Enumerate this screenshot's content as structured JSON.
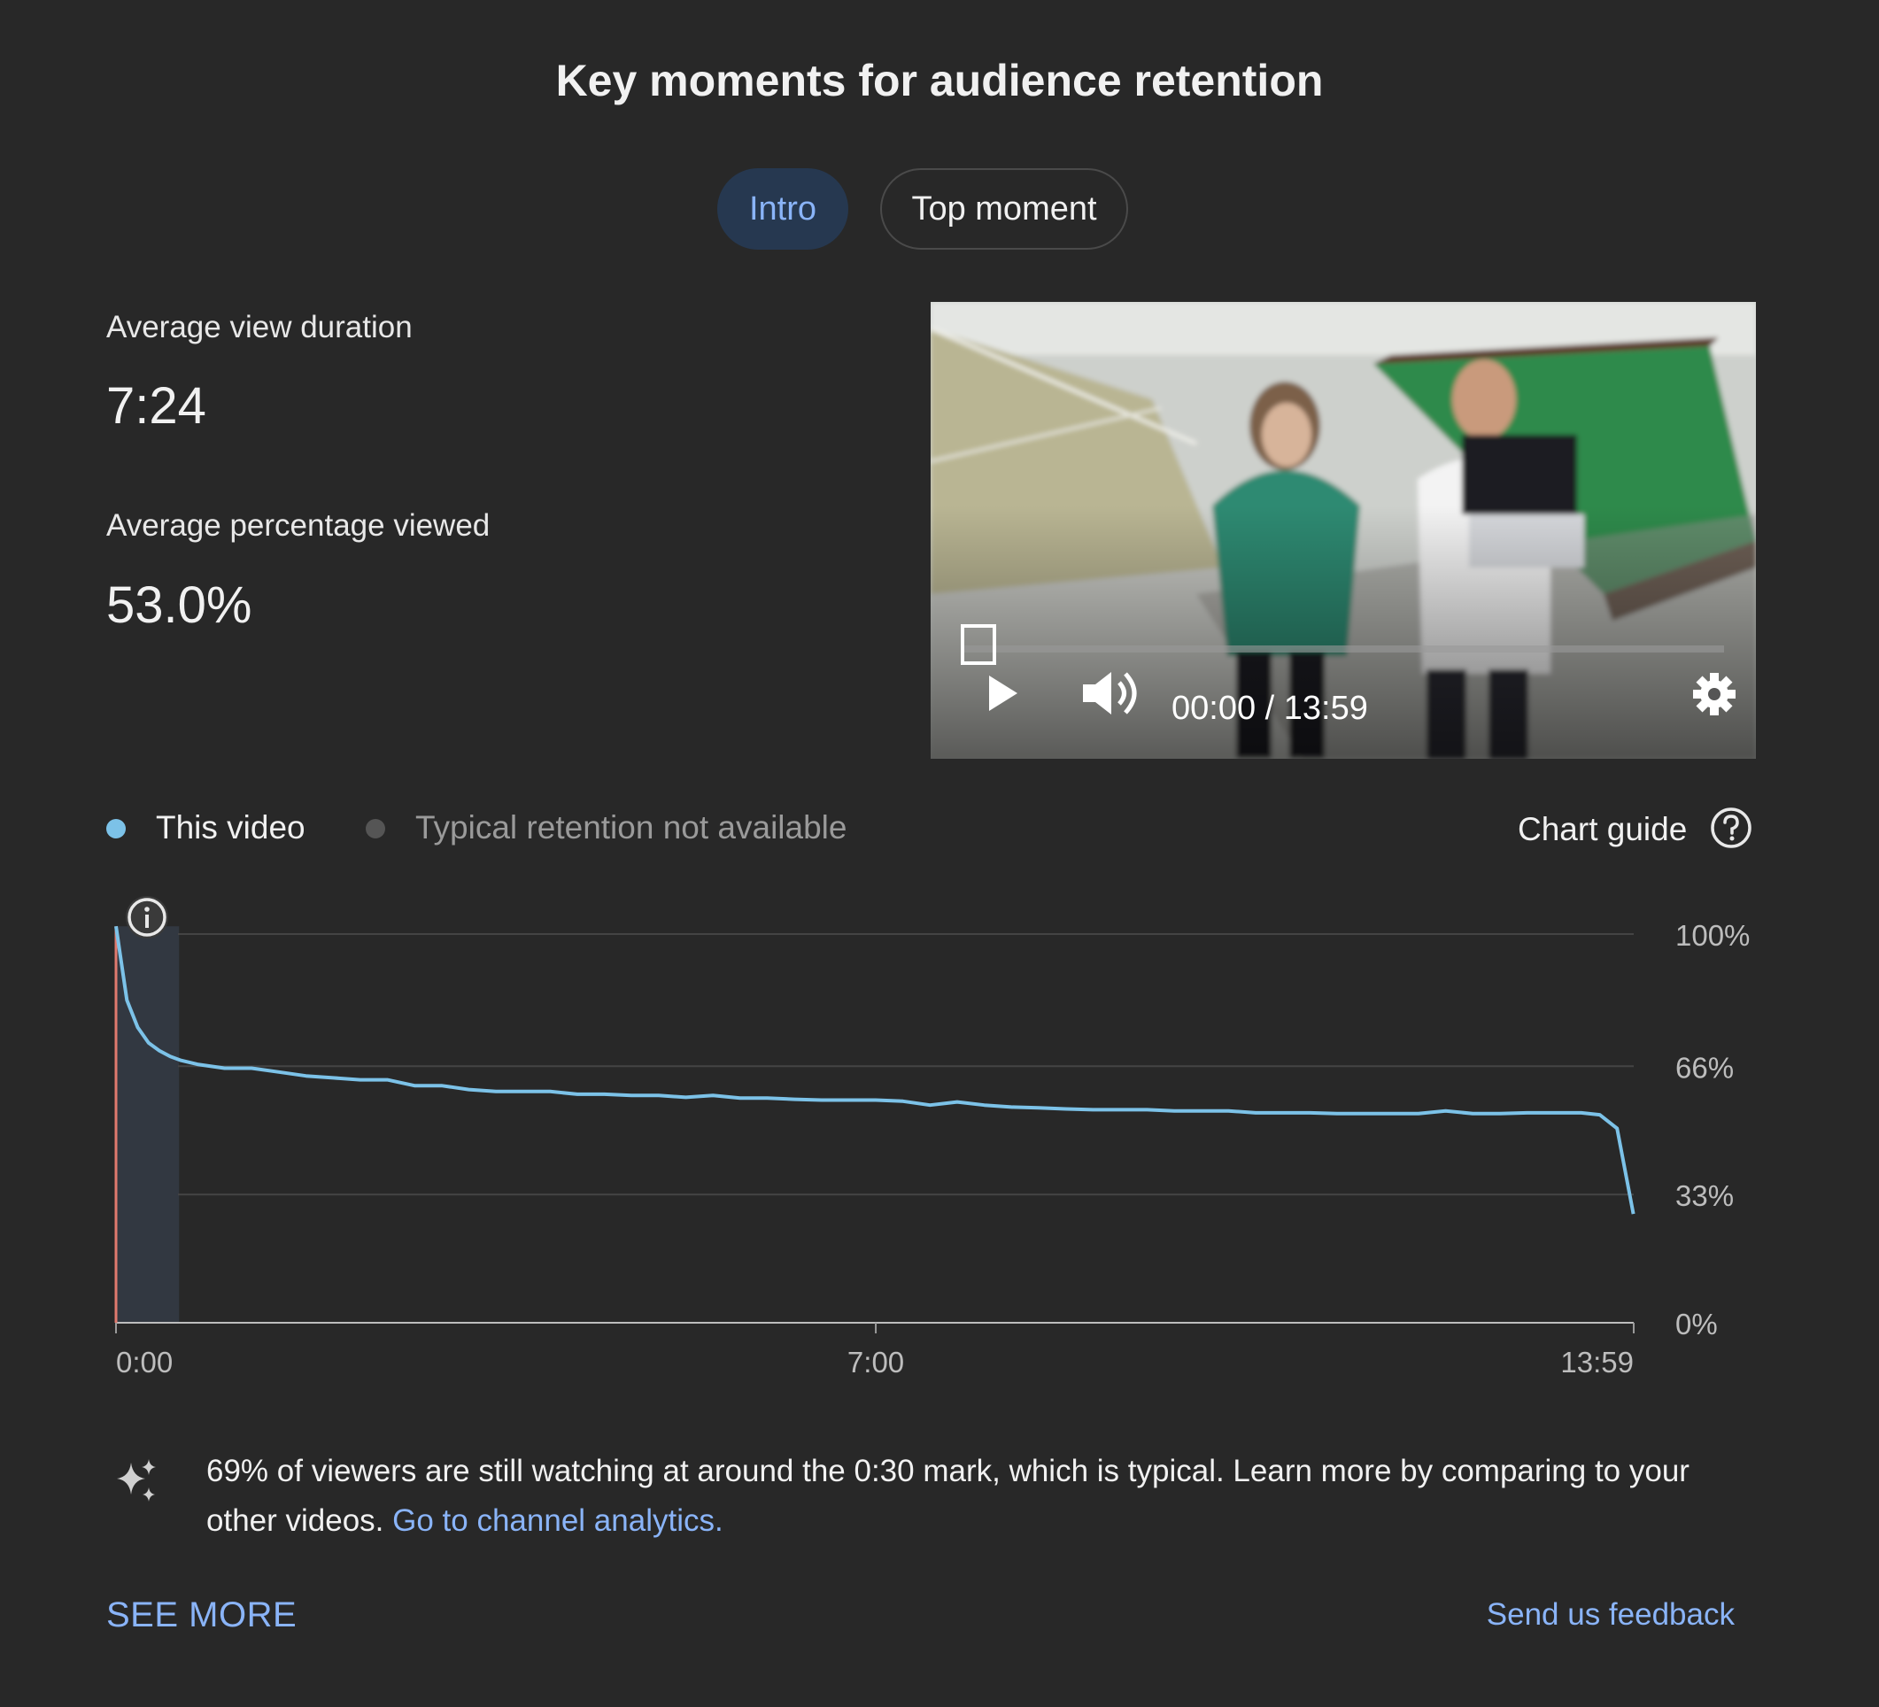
{
  "title": "Key moments for audience retention",
  "tabs": [
    {
      "label": "Intro",
      "selected": true
    },
    {
      "label": "Top moment",
      "selected": false
    }
  ],
  "stats": {
    "avg_view_duration_label": "Average view duration",
    "avg_view_duration_value": "7:24",
    "avg_pct_viewed_label": "Average percentage viewed",
    "avg_pct_viewed_value": "53.0%"
  },
  "video": {
    "time": "00:00 / 13:59",
    "progress": 0,
    "controls": [
      "play-icon",
      "volume-icon",
      "gear-icon"
    ]
  },
  "legend": {
    "this_video": "This video",
    "typical": "Typical retention not available",
    "this_video_color": "#7cc2e8",
    "typical_color": "#555555"
  },
  "chart_guide": "Chart guide",
  "chart_data": {
    "type": "line",
    "series": [
      {
        "name": "This video",
        "x": [
          0,
          0.1,
          0.2,
          0.3,
          0.4,
          0.5,
          0.6,
          0.75,
          1,
          1.25,
          1.5,
          1.75,
          2,
          2.25,
          2.5,
          2.75,
          3,
          3.25,
          3.5,
          3.75,
          4,
          4.25,
          4.5,
          4.75,
          5,
          5.25,
          5.5,
          5.75,
          6,
          6.25,
          6.5,
          6.75,
          7,
          7.25,
          7.5,
          7.75,
          8,
          8.25,
          8.5,
          8.75,
          9,
          9.25,
          9.5,
          9.75,
          10,
          10.25,
          10.5,
          10.75,
          11,
          11.25,
          11.5,
          11.75,
          12,
          12.25,
          12.5,
          12.75,
          13,
          13.25,
          13.5,
          13.67,
          13.83,
          13.98
        ],
        "y": [
          102,
          83,
          76,
          72,
          70,
          68.5,
          67.5,
          66.5,
          65.5,
          65.5,
          64.5,
          63.5,
          63,
          62.5,
          62.5,
          61,
          61,
          60,
          59.5,
          59.5,
          59.5,
          58.8,
          58.8,
          58.5,
          58.5,
          58,
          58.5,
          57.8,
          57.8,
          57.5,
          57.3,
          57.3,
          57.3,
          57,
          56,
          56.8,
          56,
          55.5,
          55.3,
          55,
          54.8,
          54.8,
          54.8,
          54.5,
          54.5,
          54.5,
          54,
          54,
          54,
          53.8,
          53.8,
          53.8,
          53.8,
          54.5,
          53.8,
          53.8,
          54,
          54,
          54,
          53.5,
          50,
          28
        ]
      }
    ],
    "x_tick_labels": [
      "0:00",
      "7:00",
      "13:59"
    ],
    "x_ticks": [
      0,
      7,
      13.983
    ],
    "y_tick_labels": [
      "100%",
      "66%",
      "33%",
      "0%"
    ],
    "y_ticks": [
      100,
      66,
      33,
      0
    ],
    "xlim": [
      0,
      13.983
    ],
    "ylim": [
      0,
      100
    ],
    "grid": true,
    "highlight_range": [
      0,
      0.5
    ],
    "line_color": "#7cc2e8"
  },
  "insight": {
    "text": "69% of viewers are still watching at around the 0:30 mark, which is typical. Learn more by comparing to your other videos.",
    "link": "Go to channel analytics."
  },
  "see_more": "SEE MORE",
  "feedback": "Send us feedback"
}
